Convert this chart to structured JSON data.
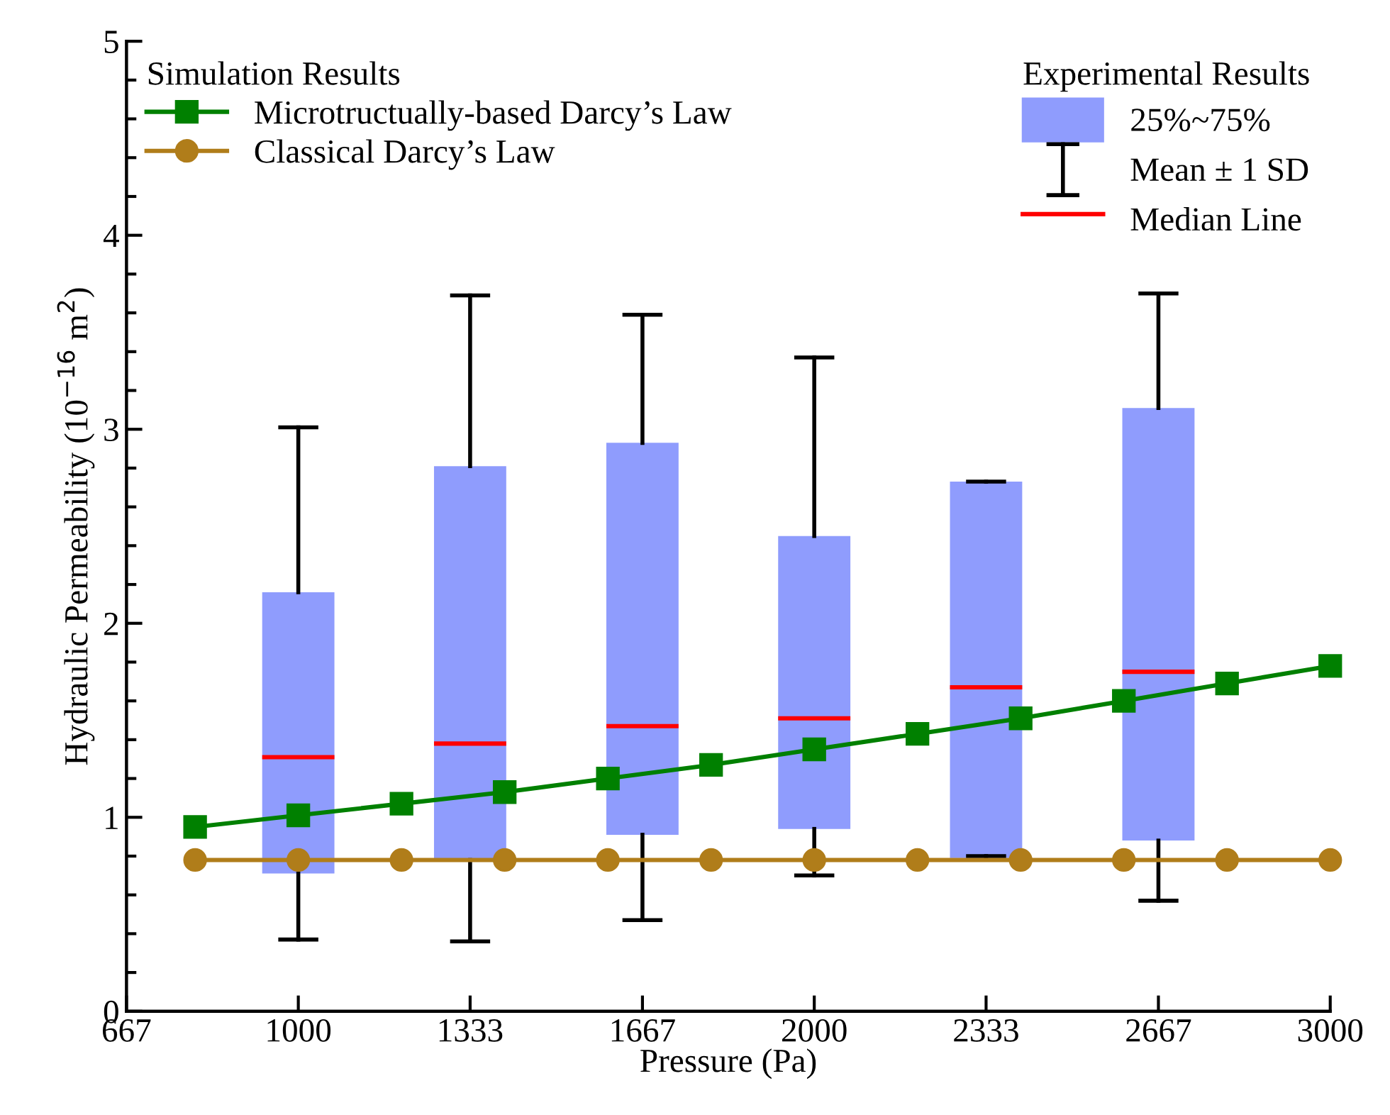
{
  "chart_data": {
    "type": "box",
    "xlabel": "Pressure (Pa)",
    "ylabel": "Hydraulic Permeability (10$^{−16}$ m$^{2}$)",
    "legend_title": [
      "Simulation Results",
      "Experimental Results"
    ],
    "legend": [
      "top left",
      "top right"
    ],
    "xlim": [
      667,
      3000
    ],
    "xticks": [
      667,
      1000,
      1333,
      1667,
      2000,
      2333,
      2667,
      3000
    ],
    "ylim": [
      0,
      5
    ],
    "yticks": [
      0,
      1,
      2,
      3,
      4,
      5
    ],
    "grid": false,
    "annotations": [
      "Mean ± 1 SD",
      "Median Line"
    ],
    "series": [
      {
        "name": "25%~75%",
        "color": "#8f9cfd",
        "x": [
          1000,
          1333,
          1667,
          2000,
          2333,
          2667
        ],
        "boxes": [
          {
            "low": 0.37,
            "q1": 0.71,
            "median": 1.31,
            "q3": 2.16,
            "high": 3.01
          },
          {
            "low": 0.36,
            "q1": 0.78,
            "median": 1.38,
            "q3": 2.81,
            "high": 3.69
          },
          {
            "low": 0.47,
            "q1": 0.91,
            "median": 1.47,
            "q3": 2.93,
            "high": 3.59
          },
          {
            "low": 0.7,
            "q1": 0.94,
            "median": 1.51,
            "q3": 2.45,
            "high": 3.37
          },
          {
            "low": 0.8,
            "q1": 0.79,
            "median": 1.67,
            "q3": 2.73,
            "high": 2.73
          },
          {
            "low": 0.57,
            "q1": 0.88,
            "median": 1.75,
            "q3": 3.11,
            "high": 3.7
          }
        ]
      },
      {
        "type": "line",
        "name": "Microtructually-based Darcy’s Law",
        "color": "#008000",
        "marker": "square",
        "line_style": "solid",
        "x": [
          800,
          1000,
          1200,
          1400,
          1600,
          1800,
          2000,
          2200,
          2400,
          2600,
          2800,
          3000
        ],
        "values": [
          0.95,
          1.01,
          1.07,
          1.13,
          1.2,
          1.27,
          1.35,
          1.43,
          1.51,
          1.6,
          1.69,
          1.78
        ]
      },
      {
        "type": "line",
        "name": "Classical Darcy’s Law",
        "color": "#b07d1a",
        "marker": "circle",
        "line_style": "solid",
        "x": [
          800,
          1000,
          1200,
          1400,
          1600,
          1800,
          2000,
          2200,
          2400,
          2600,
          2800,
          3000
        ],
        "values": [
          0.78,
          0.78,
          0.78,
          0.78,
          0.78,
          0.78,
          0.78,
          0.78,
          0.78,
          0.78,
          0.78,
          0.78
        ]
      }
    ]
  }
}
